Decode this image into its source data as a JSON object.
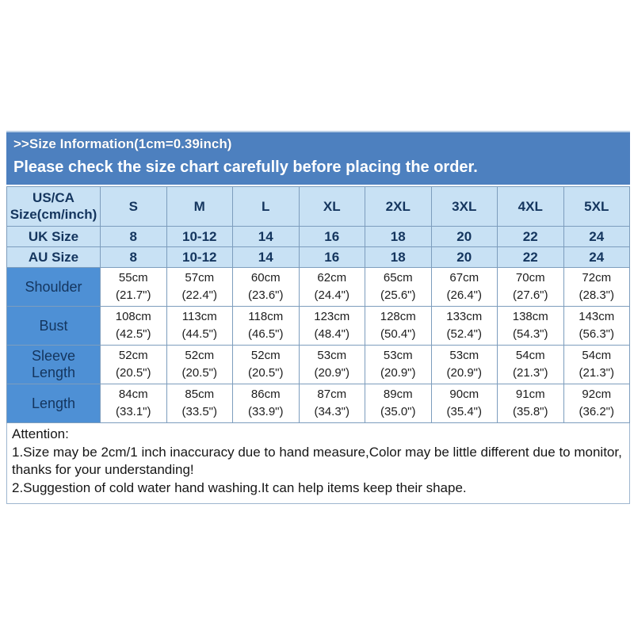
{
  "banner": {
    "title": ">>Size Information(1cm=0.39inch)",
    "subtitle": "Please check the size chart carefully before placing the order."
  },
  "table": {
    "header_label": "US/CA\nSize(cm/inch)",
    "size_columns": [
      "S",
      "M",
      "L",
      "XL",
      "2XL",
      "3XL",
      "4XL",
      "5XL"
    ],
    "size_rows": [
      {
        "label": "UK Size",
        "values": [
          "8",
          "10-12",
          "14",
          "16",
          "18",
          "20",
          "22",
          "24"
        ]
      },
      {
        "label": "AU Size",
        "values": [
          "8",
          "10-12",
          "14",
          "16",
          "18",
          "20",
          "22",
          "24"
        ]
      }
    ],
    "measure_rows": [
      {
        "label": "Shoulder",
        "cm": [
          "55cm",
          "57cm",
          "60cm",
          "62cm",
          "65cm",
          "67cm",
          "70cm",
          "72cm"
        ],
        "inch": [
          "(21.7\")",
          "(22.4\")",
          "(23.6\")",
          "(24.4\")",
          "(25.6\")",
          "(26.4\")",
          "(27.6\")",
          "(28.3\")"
        ]
      },
      {
        "label": "Bust",
        "cm": [
          "108cm",
          "113cm",
          "118cm",
          "123cm",
          "128cm",
          "133cm",
          "138cm",
          "143cm"
        ],
        "inch": [
          "(42.5\")",
          "(44.5\")",
          "(46.5\")",
          "(48.4\")",
          "(50.4\")",
          "(52.4\")",
          "(54.3\")",
          "(56.3\")"
        ]
      },
      {
        "label": "Sleeve Length",
        "cm": [
          "52cm",
          "52cm",
          "52cm",
          "53cm",
          "53cm",
          "53cm",
          "54cm",
          "54cm"
        ],
        "inch": [
          "(20.5\")",
          "(20.5\")",
          "(20.5\")",
          "(20.9\")",
          "(20.9\")",
          "(20.9\")",
          "(21.3\")",
          "(21.3\")"
        ]
      },
      {
        "label": "Length",
        "cm": [
          "84cm",
          "85cm",
          "86cm",
          "87cm",
          "89cm",
          "90cm",
          "91cm",
          "92cm"
        ],
        "inch": [
          "(33.1\")",
          "(33.5\")",
          "(33.9\")",
          "(34.3\")",
          "(35.0\")",
          "(35.4\")",
          "(35.8\")",
          "(36.2\")"
        ]
      }
    ]
  },
  "attention": {
    "heading": "Attention:",
    "line1": "1.Size may be 2cm/1 inch inaccuracy due to hand measure,Color may be little different due to monitor, thanks for your understanding!",
    "line2": "2.Suggestion of cold water hand washing.It can help items keep their shape."
  },
  "colors": {
    "banner_blue": "#4d80bf",
    "cell_light_blue": "#c8e1f4",
    "label_blue": "#4e90d5",
    "dark_navy": "#14355e",
    "border": "#7d9dbd"
  }
}
